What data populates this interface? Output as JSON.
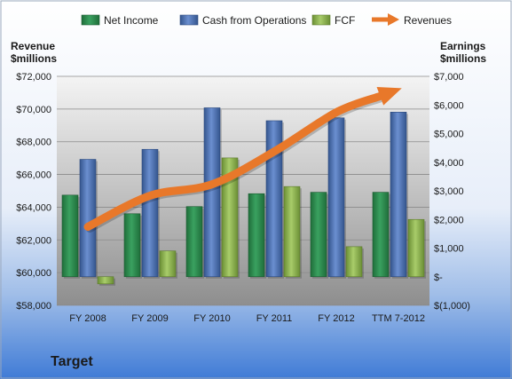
{
  "chart_data": {
    "type": "bar",
    "title": "Target",
    "categories": [
      "FY 2008",
      "FY 2009",
      "FY 2010",
      "FY 2011",
      "FY 2012",
      "TTM 7-2012"
    ],
    "left_axis": {
      "label_line1": "Revenue",
      "label_line2": "$millions",
      "range": [
        58000,
        72000
      ],
      "ticks": [
        "$58,000",
        "$60,000",
        "$62,000",
        "$64,000",
        "$66,000",
        "$68,000",
        "$70,000",
        "$72,000"
      ]
    },
    "right_axis": {
      "label_line1": "Earnings",
      "label_line2": "$millions",
      "range": [
        -1000,
        7000
      ],
      "ticks": [
        "$(1,000)",
        "$-",
        "$1,000",
        "$2,000",
        "$3,000",
        "$4,000",
        "$5,000",
        "$6,000",
        "$7,000"
      ]
    },
    "series": [
      {
        "name": "Net Income",
        "axis": "right",
        "kind": "bar",
        "color": "#2e8b4e",
        "values": [
          2850,
          2200,
          2450,
          2900,
          2950,
          2950
        ]
      },
      {
        "name": "Cash from Operations",
        "axis": "right",
        "kind": "bar",
        "color": "#4a6fb0",
        "values": [
          4100,
          4450,
          5900,
          5450,
          5550,
          5750
        ]
      },
      {
        "name": "FCF",
        "axis": "right",
        "kind": "bar",
        "color": "#8ab04e",
        "values": [
          -250,
          900,
          4150,
          3150,
          1050,
          2000
        ]
      },
      {
        "name": "Revenues",
        "axis": "left",
        "kind": "arrow-line",
        "color": "#e8782a",
        "values": [
          62800,
          64700,
          65400,
          67400,
          69800,
          71200
        ]
      }
    ],
    "legend_placement": "top",
    "grid": true
  }
}
